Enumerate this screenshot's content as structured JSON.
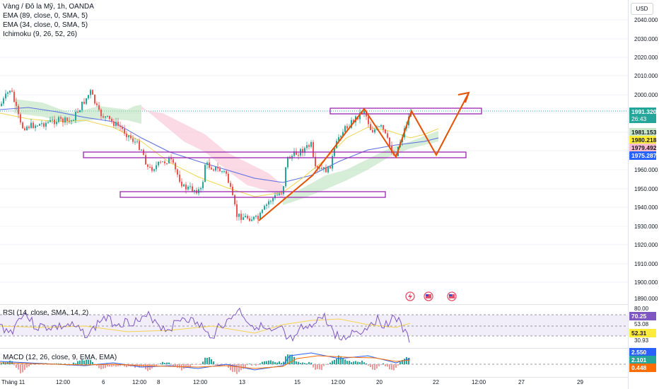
{
  "chart": {
    "legend": [
      "Vàng / Đô la Mỹ, 1h, OANDA",
      "EMA (89, close, 0, SMA, 5)",
      "EMA (34, close, 0, SMA, 5)",
      "Ichimoku (9, 26, 52, 26)"
    ],
    "currency_button": "USD",
    "price_ticks": [
      "2040.000",
      "2030.000",
      "2020.000",
      "2010.000",
      "2000.000",
      "1960.000",
      "1950.000",
      "1940.000",
      "1930.000",
      "1920.000",
      "1910.000",
      "1900.000",
      "1890.000"
    ],
    "price_tags": {
      "last_price": "1991.320",
      "countdown": "26:43",
      "tag_green": "1981.153",
      "tag_yellow": "1980.218",
      "tag_pink": "1979.492",
      "tag_blue": "1975.287"
    },
    "colors": {
      "up": "#26a69a",
      "down": "#ef5350",
      "arrow": "#e65100",
      "box": "#9c27b0",
      "blue_tag": "#2962ff"
    }
  },
  "rsi": {
    "title": "RSI (14, close, SMA, 14, 2)",
    "ticks": [
      "80.00",
      "53.08",
      "30.93"
    ],
    "tags": {
      "violet": "70.25",
      "yellow": "52.31"
    }
  },
  "macd": {
    "title": "MACD (12, 26, close, 9, EMA, EMA)",
    "tags": {
      "blue": "2.550",
      "teal": "2.101",
      "orange": "0.448"
    }
  },
  "time_axis": [
    "Tháng 11",
    "12:00",
    "6",
    "12:00",
    "8",
    "12:00",
    "13",
    "15",
    "12:00",
    "20",
    "22",
    "12:00",
    "27",
    "29"
  ],
  "event_icons": [
    "lightning-icon",
    "us-flag-icon",
    "us-flag-icon"
  ]
}
